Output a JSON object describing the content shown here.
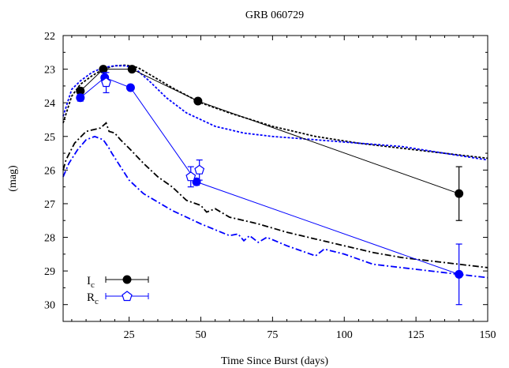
{
  "chart_data": {
    "type": "line",
    "title": "GRB 060729",
    "xlabel": "Time Since Burst (days)",
    "ylabel": "(mag)",
    "xlim": [
      2,
      150
    ],
    "ylim": [
      30.5,
      22
    ],
    "y_inverted": true,
    "xticks": [
      25,
      50,
      75,
      100,
      125,
      150
    ],
    "yticks": [
      22,
      23,
      24,
      25,
      26,
      27,
      28,
      29,
      30
    ],
    "grid": false,
    "legend_position": "bottom-left",
    "legend": [
      {
        "label_main": "I",
        "label_sub": "c",
        "color": "#000000",
        "marker": "circle"
      },
      {
        "label_main": "R",
        "label_sub": "c",
        "color": "#0000ff",
        "marker": "pentagon"
      }
    ],
    "series": [
      {
        "name": "I_c",
        "color": "#000000",
        "marker": "circle",
        "x": [
          8,
          16,
          26,
          49,
          140
        ],
        "y": [
          23.65,
          23.0,
          23.0,
          23.95,
          26.7
        ],
        "xerr": [
          0,
          0,
          0,
          0,
          0
        ],
        "yerr": [
          0.1,
          0.05,
          0.05,
          0.05,
          0.8
        ]
      },
      {
        "name": "R_c",
        "color": "#0000ff",
        "marker": "filled-circle",
        "x": [
          8,
          16.5,
          25.5,
          48.5,
          140
        ],
        "y": [
          23.85,
          23.25,
          23.55,
          26.35,
          29.1
        ],
        "xerr": [
          0,
          0,
          0,
          0,
          0
        ],
        "yerr": [
          0.1,
          0.15,
          0.05,
          0.1,
          0.9
        ]
      },
      {
        "name": "R_c",
        "color": "#0000ff",
        "marker": "open-pentagon",
        "x": [
          17,
          46.5,
          49.5
        ],
        "y": [
          23.4,
          26.2,
          26.0
        ],
        "xerr": [
          0,
          0,
          0
        ],
        "yerr": [
          0.3,
          0.3,
          0.3
        ]
      }
    ],
    "model_curves": [
      {
        "color": "#000000",
        "style": "dotted",
        "x": [
          2,
          5,
          8,
          12,
          16,
          20,
          24,
          28,
          32,
          40,
          50,
          60,
          75,
          90,
          105,
          120,
          135,
          150
        ],
        "y": [
          24.6,
          23.8,
          23.45,
          23.2,
          23.0,
          22.9,
          22.88,
          22.95,
          23.15,
          23.55,
          24.0,
          24.3,
          24.7,
          25.0,
          25.2,
          25.35,
          25.5,
          25.65
        ]
      },
      {
        "color": "#0000ff",
        "style": "dotted",
        "x": [
          2,
          5,
          8,
          12,
          16,
          20,
          24,
          28,
          32,
          38,
          45,
          55,
          65,
          75,
          90,
          105,
          120,
          135,
          150
        ],
        "y": [
          24.4,
          23.6,
          23.35,
          23.1,
          22.95,
          22.9,
          22.9,
          23.05,
          23.35,
          23.85,
          24.3,
          24.7,
          24.9,
          25.0,
          25.1,
          25.2,
          25.3,
          25.5,
          25.7
        ]
      },
      {
        "color": "#000000",
        "style": "dash-dot",
        "x": [
          2,
          3,
          6,
          10,
          15,
          17,
          18,
          20,
          22,
          25,
          30,
          35,
          40,
          45,
          50,
          52,
          55,
          60,
          70,
          80,
          90,
          100,
          110,
          120,
          135,
          150
        ],
        "y": [
          26.0,
          25.7,
          25.2,
          24.85,
          24.75,
          24.6,
          24.85,
          24.9,
          25.1,
          25.35,
          25.8,
          26.2,
          26.5,
          26.9,
          27.05,
          27.25,
          27.15,
          27.4,
          27.6,
          27.85,
          28.05,
          28.25,
          28.45,
          28.6,
          28.75,
          28.9
        ]
      },
      {
        "color": "#0000ff",
        "style": "dash-dot",
        "x": [
          2,
          4,
          7,
          10,
          13,
          16,
          18,
          19,
          22,
          25,
          30,
          40,
          50,
          60,
          63,
          65,
          67,
          70,
          73,
          80,
          90,
          93,
          100,
          110,
          120,
          130,
          140,
          150
        ],
        "y": [
          26.2,
          25.8,
          25.4,
          25.1,
          25.0,
          25.1,
          25.35,
          25.5,
          25.9,
          26.3,
          26.7,
          27.2,
          27.6,
          27.95,
          27.9,
          28.1,
          27.95,
          28.15,
          28.0,
          28.25,
          28.55,
          28.35,
          28.5,
          28.8,
          28.9,
          29.0,
          29.1,
          29.2
        ]
      }
    ]
  }
}
